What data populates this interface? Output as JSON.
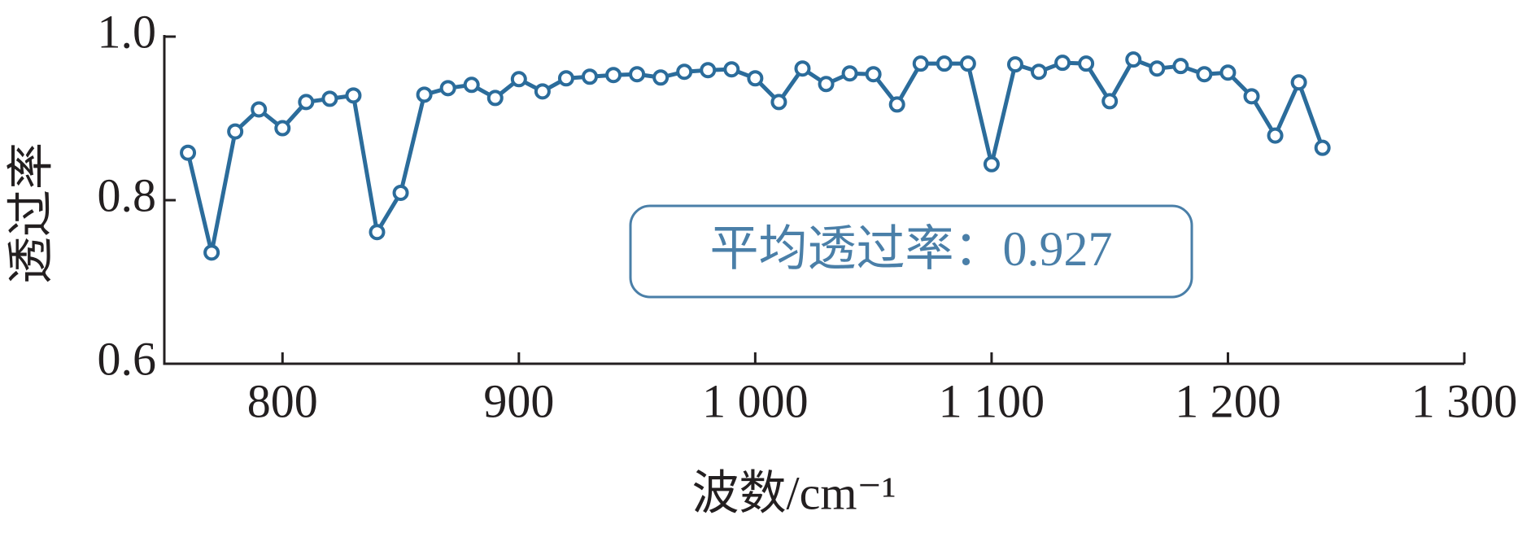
{
  "chart_data": {
    "type": "line",
    "y_label": "透过率",
    "x_label": "波数/cm⁻¹",
    "annotation": "平均透过率：0.927",
    "x": [
      760,
      770,
      780,
      790,
      800,
      810,
      820,
      830,
      840,
      850,
      860,
      870,
      880,
      890,
      900,
      910,
      920,
      930,
      940,
      950,
      960,
      970,
      980,
      990,
      1000,
      1010,
      1020,
      1030,
      1040,
      1050,
      1060,
      1070,
      1080,
      1090,
      1100,
      1110,
      1120,
      1130,
      1140,
      1150,
      1160,
      1170,
      1180,
      1190,
      1200,
      1210,
      1220,
      1230,
      1240
    ],
    "series": [
      {
        "color": "#2b6c9b",
        "values": [
          0.858,
          0.736,
          0.884,
          0.911,
          0.888,
          0.92,
          0.924,
          0.928,
          0.761,
          0.809,
          0.929,
          0.937,
          0.941,
          0.925,
          0.948,
          0.933,
          0.949,
          0.951,
          0.953,
          0.954,
          0.95,
          0.957,
          0.959,
          0.96,
          0.949,
          0.92,
          0.961,
          0.942,
          0.955,
          0.954,
          0.917,
          0.967,
          0.967,
          0.967,
          0.844,
          0.966,
          0.957,
          0.968,
          0.967,
          0.921,
          0.972,
          0.961,
          0.964,
          0.954,
          0.956,
          0.927,
          0.879,
          0.944,
          0.864
        ]
      }
    ],
    "xlim": [
      750,
      1300
    ],
    "xticks": [
      800,
      900,
      {
        "value": 1000,
        "label": "1 000"
      },
      {
        "value": 1100,
        "label": "1 100"
      },
      {
        "value": 1200,
        "label": "1 200"
      },
      {
        "value": 1300,
        "label": "1 300"
      }
    ],
    "ylim": [
      0.6,
      1.0
    ],
    "yticks": [
      0.6,
      0.8,
      {
        "value": 1.0,
        "label": "1.0"
      }
    ],
    "grid": false
  }
}
